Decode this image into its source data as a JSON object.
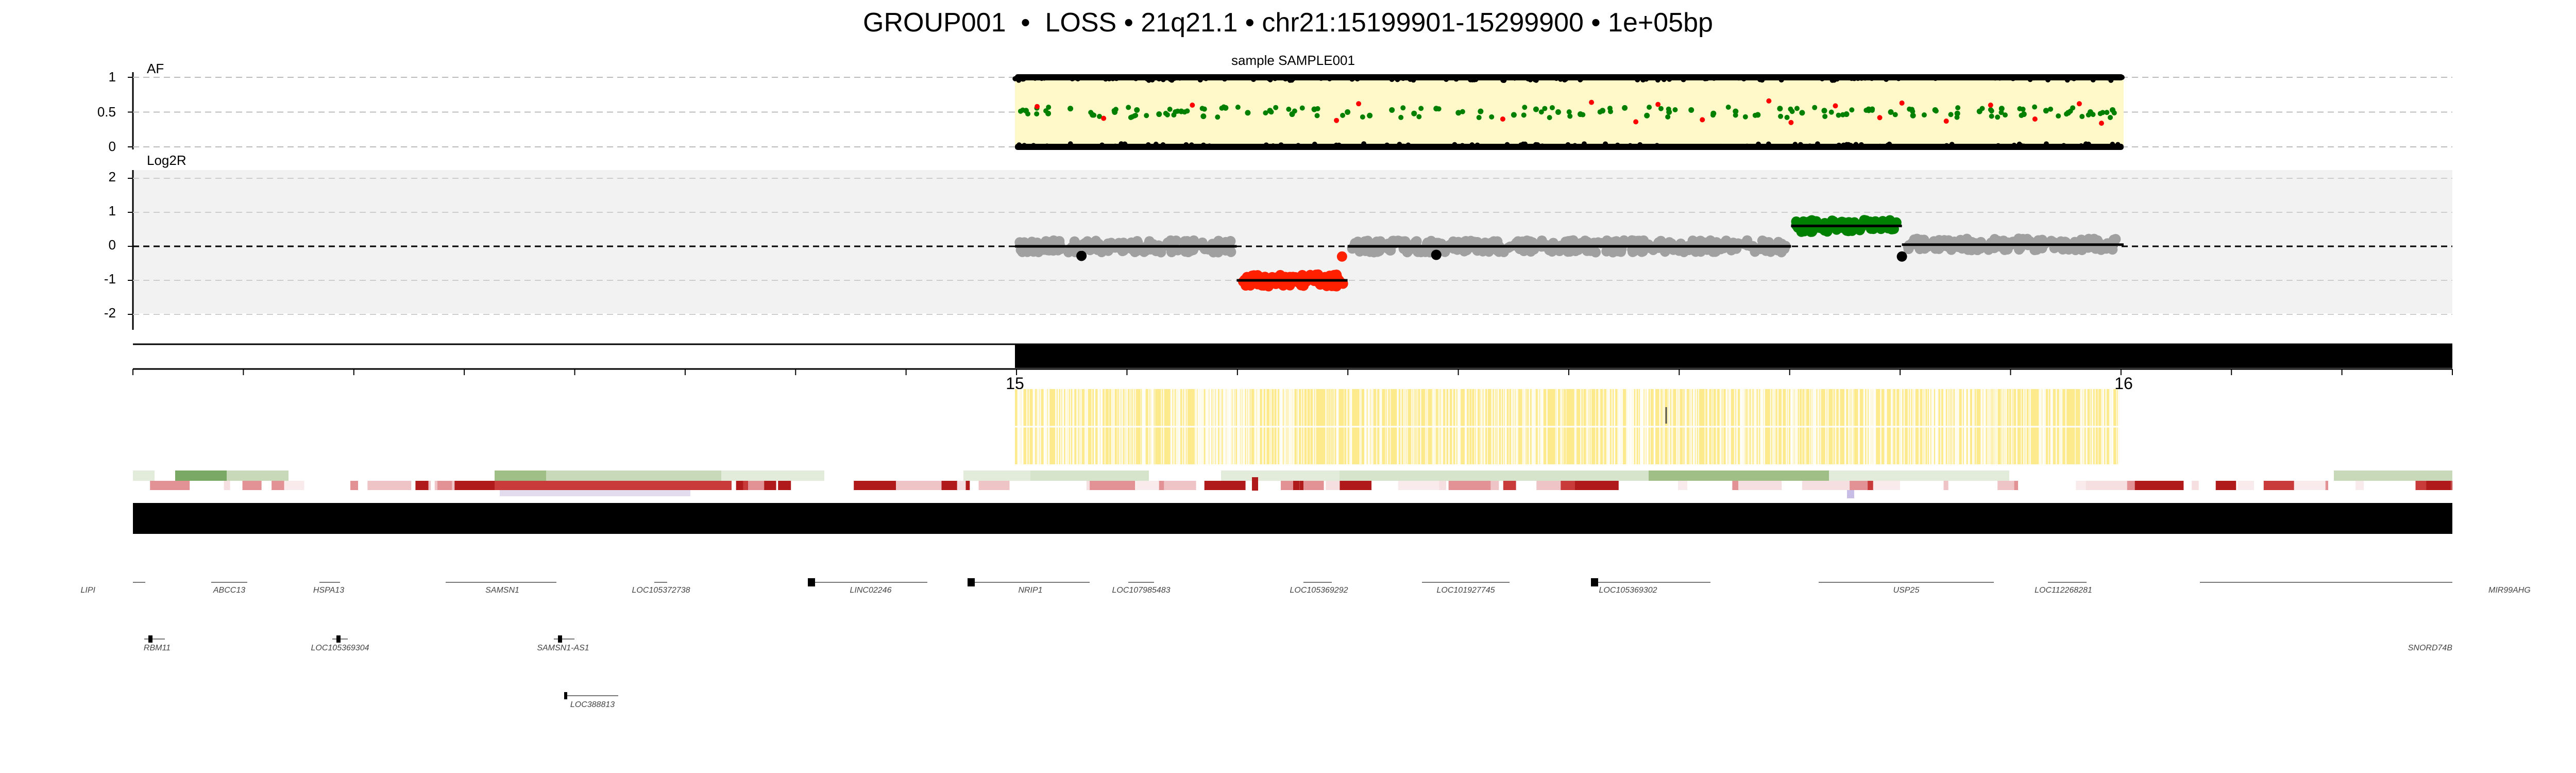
{
  "title": "GROUP001  •  LOSS • 21q21.1 • chr21:15199901-15299900 • 1e+05bp",
  "chart_data": [
    {
      "type": "scatter",
      "panel": "af",
      "title": "sample SAMPLE001",
      "ylabel": "AF",
      "y_ticks": [
        "1",
        "0.5",
        "0"
      ],
      "ylim": [
        0,
        1
      ],
      "grid": true,
      "series": [
        {
          "color": "#008000",
          "points": [
            [
              15.01,
              0.52
            ],
            [
              15.03,
              0.48
            ],
            [
              15.05,
              0.55
            ],
            [
              15.07,
              0.46
            ],
            [
              15.09,
              0.5
            ],
            [
              15.11,
              0.53
            ],
            [
              15.13,
              0.47
            ],
            [
              15.15,
              0.51
            ],
            [
              15.17,
              0.44
            ],
            [
              15.19,
              0.56
            ],
            [
              15.21,
              0.49
            ],
            [
              15.23,
              0.52
            ],
            [
              15.25,
              0.47
            ],
            [
              15.27,
              0.54
            ],
            [
              15.3,
              0.5
            ],
            [
              15.32,
              0.45
            ],
            [
              15.34,
              0.53
            ],
            [
              15.36,
              0.48
            ],
            [
              15.38,
              0.55
            ],
            [
              15.4,
              0.49
            ],
            [
              15.42,
              0.51
            ],
            [
              15.45,
              0.46
            ],
            [
              15.47,
              0.54
            ],
            [
              15.49,
              0.5
            ],
            [
              15.51,
              0.47
            ],
            [
              15.53,
              0.52
            ],
            [
              15.55,
              0.56
            ],
            [
              15.57,
              0.45
            ],
            [
              15.59,
              0.5
            ],
            [
              15.61,
              0.53
            ],
            [
              15.63,
              0.48
            ],
            [
              15.65,
              0.51
            ],
            [
              15.67,
              0.46
            ],
            [
              15.69,
              0.55
            ],
            [
              15.71,
              0.49
            ],
            [
              15.73,
              0.52
            ],
            [
              15.75,
              0.47
            ],
            [
              15.77,
              0.54
            ],
            [
              15.79,
              0.5
            ],
            [
              15.81,
              0.45
            ],
            [
              15.83,
              0.53
            ],
            [
              15.85,
              0.48
            ],
            [
              15.87,
              0.51
            ],
            [
              15.89,
              0.55
            ],
            [
              15.91,
              0.47
            ],
            [
              15.93,
              0.52
            ],
            [
              15.95,
              0.49
            ],
            [
              15.97,
              0.5
            ],
            [
              15.99,
              0.53
            ]
          ]
        },
        {
          "color": "#ff0000",
          "points": [
            [
              15.02,
              0.58
            ],
            [
              15.08,
              0.41
            ],
            [
              15.16,
              0.6
            ],
            [
              15.29,
              0.38
            ],
            [
              15.31,
              0.62
            ],
            [
              15.44,
              0.4
            ],
            [
              15.52,
              0.64
            ],
            [
              15.56,
              0.36
            ],
            [
              15.58,
              0.61
            ],
            [
              15.62,
              0.39
            ],
            [
              15.68,
              0.66
            ],
            [
              15.7,
              0.35
            ],
            [
              15.74,
              0.59
            ],
            [
              15.78,
              0.42
            ],
            [
              15.8,
              0.63
            ],
            [
              15.84,
              0.37
            ],
            [
              15.88,
              0.6
            ],
            [
              15.92,
              0.4
            ],
            [
              15.96,
              0.62
            ],
            [
              15.98,
              0.34
            ]
          ]
        },
        {
          "color": "#000000",
          "points": [
            [
              15.0,
              1.0
            ],
            [
              16.0,
              1.0
            ],
            [
              15.0,
              0.0
            ],
            [
              16.0,
              0.0
            ]
          ]
        }
      ],
      "highlight": {
        "x": [
          15.0,
          16.0
        ],
        "color": "#fff8c8"
      }
    },
    {
      "type": "scatter",
      "panel": "log2r",
      "ylabel": "Log2R",
      "y_ticks": [
        "2",
        "1",
        "0",
        "-1",
        "-2"
      ],
      "ylim": [
        -2,
        2
      ],
      "grid": true,
      "series": [
        {
          "color": "#a0a0a0",
          "points": [
            [
              15.0,
              0.0
            ],
            [
              15.2,
              0.05
            ],
            [
              15.4,
              0.0
            ],
            [
              15.6,
              -0.05
            ],
            [
              15.8,
              0.1
            ],
            [
              16.0,
              0.05
            ]
          ]
        },
        {
          "color": "#ff2000",
          "points": [
            [
              15.2,
              -1.0
            ],
            [
              15.25,
              -1.05
            ],
            [
              15.3,
              -1.0
            ]
          ]
        },
        {
          "color": "#008000",
          "points": [
            [
              15.7,
              0.55
            ],
            [
              15.75,
              0.6
            ],
            [
              15.8,
              0.55
            ]
          ]
        }
      ],
      "segments": [
        {
          "x": [
            15.0,
            15.2
          ],
          "y": 0.0
        },
        {
          "x": [
            15.2,
            15.3
          ],
          "y": -1.0
        },
        {
          "x": [
            15.3,
            15.7
          ],
          "y": 0.0
        },
        {
          "x": [
            15.7,
            15.8
          ],
          "y": 0.6
        },
        {
          "x": [
            15.8,
            16.0
          ],
          "y": 0.05
        }
      ],
      "xlim": [
        14.2,
        16.3
      ],
      "x_ticks": [
        "15",
        "16"
      ]
    }
  ],
  "genes": {
    "row1": [
      "LIPI",
      "ABCC13",
      "HSPA13",
      "SAMSN1",
      "LOC105372738",
      "LINC02246",
      "NRIP1",
      "LOC107985483",
      "LOC105369292",
      "LOC101927745",
      "LOC105369302",
      "USP25",
      "LOC112268281",
      "MIR99AHG"
    ],
    "row2": [
      "RBM11",
      "LOC105369304",
      "SAMSN1-AS1",
      "SNORD74B"
    ],
    "row3": [
      "LOC388813"
    ]
  },
  "colors": {
    "gain": "#008000",
    "loss": "#ff2000",
    "neutral": "#a0a0a0",
    "af_highlight": "#fff8c8",
    "track_yellow": "#fdea8c",
    "panel_bg": "#f2f2f2"
  }
}
